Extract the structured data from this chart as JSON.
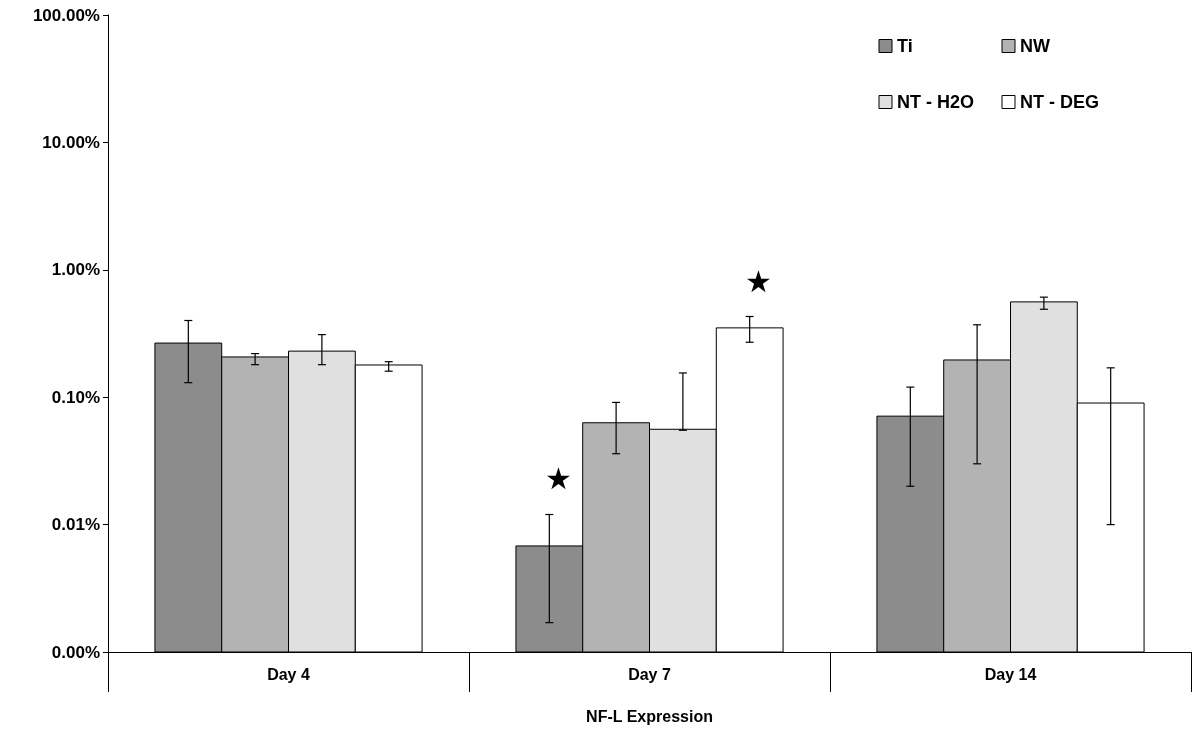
{
  "chart_data": {
    "type": "bar",
    "xlabel": "NF-L Expression",
    "categories": [
      "Day 4",
      "Day 7",
      "Day 14"
    ],
    "series": [
      {
        "name": "Ti",
        "color": "#8c8c8c",
        "values": [
          0.266,
          0.0068,
          0.071
        ],
        "errors": [
          [
            0.13,
            0.4
          ],
          [
            0.0017,
            0.012
          ],
          [
            0.02,
            0.12
          ]
        ]
      },
      {
        "name": "NW",
        "color": "#b3b3b3",
        "values": [
          0.207,
          0.063,
          0.196
        ],
        "errors": [
          [
            0.18,
            0.22
          ],
          [
            0.036,
            0.091
          ],
          [
            0.03,
            0.37
          ]
        ]
      },
      {
        "name": "NT - H2O",
        "color": "#e0e0e0",
        "values": [
          0.23,
          0.056,
          0.56
        ],
        "errors": [
          [
            0.18,
            0.31
          ],
          [
            0.055,
            0.155
          ],
          [
            0.49,
            0.61
          ]
        ]
      },
      {
        "name": "NT - DEG",
        "color": "#ffffff",
        "values": [
          0.179,
          0.35,
          0.09
        ],
        "errors": [
          [
            0.16,
            0.19
          ],
          [
            0.27,
            0.43
          ],
          [
            0.01,
            0.17
          ]
        ]
      }
    ],
    "log": true,
    "ylim": [
      0.001,
      100
    ],
    "yticks": [
      {
        "value": 0.001,
        "label": "0.00%"
      },
      {
        "value": 0.01,
        "label": "0.01%"
      },
      {
        "value": 0.1,
        "label": "0.10%"
      },
      {
        "value": 1,
        "label": "1.00%"
      },
      {
        "value": 10,
        "label": "10.00%"
      },
      {
        "value": 100,
        "label": "100.00%"
      }
    ],
    "annotations": [
      "★",
      "★"
    ],
    "legend": "top right",
    "grid": false
  }
}
